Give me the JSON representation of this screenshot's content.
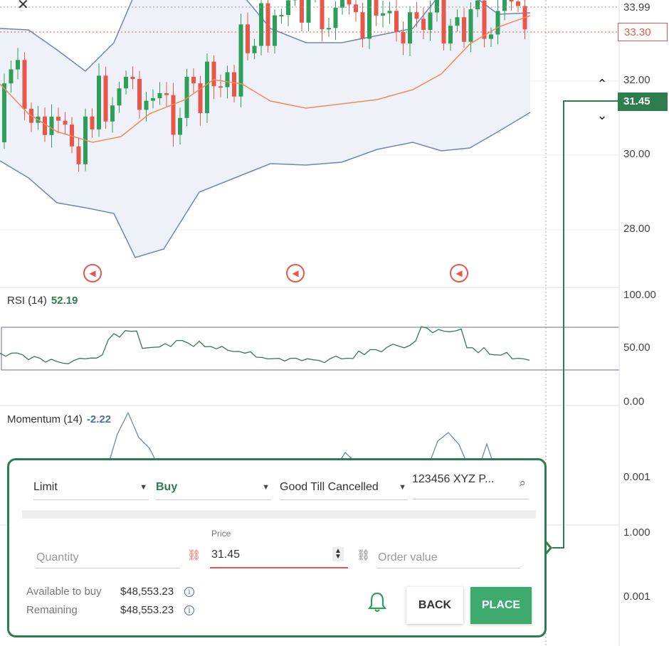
{
  "price_axis": {
    "labels": [
      "33.99",
      "32.00",
      "30.00",
      "28.00"
    ],
    "current_tag": "33.30",
    "selected_tag": "31.45"
  },
  "rsi": {
    "name": "RSI (14)",
    "value": "52.19",
    "axis": [
      "100.00",
      "50.00",
      "0.00"
    ]
  },
  "momentum": {
    "name": "Momentum (14)",
    "value": "-2.22",
    "axis": [
      "0.001",
      "1.000",
      "0.001"
    ]
  },
  "controls": {
    "close_glyph": "✕",
    "up_glyph": "⌃",
    "down_glyph": "⌄",
    "event_glyph": "◀"
  },
  "colors": {
    "up": "#2e9e5b",
    "down": "#e8574a",
    "band": "#6d86b8",
    "band_fill": "#eef1f7",
    "ma": "#f08a5d",
    "rsi_line": "#2e7d4f",
    "accent": "#2e7d4f"
  },
  "ticket": {
    "order_type": "Limit",
    "side": "Buy",
    "duration": "Good Till Cancelled",
    "account": "123456 XYZ P...",
    "quantity_placeholder": "Quantity",
    "price_label": "Price",
    "price_value": "31.45",
    "order_value_placeholder": "Order value",
    "available_label": "Available to buy",
    "available_value": "$48,553.23",
    "remaining_label": "Remaining",
    "remaining_value": "$48,553.23",
    "back_label": "BACK",
    "place_label": "PLACE",
    "caret": "▼",
    "search_glyph": "⌕",
    "link_glyph": "⛓",
    "stepper_up": "▲",
    "stepper_down": "▼",
    "info_glyph": "i"
  }
}
